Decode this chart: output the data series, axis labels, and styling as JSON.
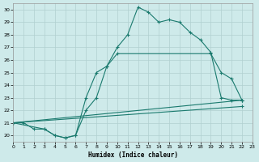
{
  "line1_x": [
    0,
    1,
    2,
    3,
    4,
    5,
    6,
    7,
    8,
    9,
    10,
    11,
    12,
    13,
    14,
    15,
    16,
    17,
    18,
    19,
    20,
    21,
    22
  ],
  "line1_y": [
    21.0,
    21.0,
    20.5,
    20.5,
    20.0,
    19.8,
    20.0,
    23.0,
    25.0,
    25.5,
    27.0,
    28.0,
    30.2,
    29.8,
    29.0,
    29.2,
    29.0,
    28.2,
    27.6,
    26.6,
    23.0,
    22.8,
    22.8
  ],
  "line2_x": [
    0,
    3,
    4,
    5,
    6,
    7,
    8,
    9,
    10,
    19,
    20,
    21,
    22
  ],
  "line2_y": [
    21.0,
    20.5,
    20.0,
    19.8,
    20.0,
    22.0,
    23.0,
    25.5,
    26.5,
    26.5,
    25.0,
    24.5,
    22.8
  ],
  "line3_x": [
    0,
    22
  ],
  "line3_y": [
    21.0,
    22.8
  ],
  "line4_x": [
    0,
    22
  ],
  "line4_y": [
    21.0,
    22.3
  ],
  "color": "#1a7a6e",
  "bg_color": "#ceeaea",
  "grid_color": "#b0d0d0",
  "xlabel": "Humidex (Indice chaleur)",
  "xlim": [
    0,
    23
  ],
  "ylim": [
    19.5,
    30.5
  ],
  "yticks": [
    20,
    21,
    22,
    23,
    24,
    25,
    26,
    27,
    28,
    29,
    30
  ],
  "xticks": [
    0,
    1,
    2,
    3,
    4,
    5,
    6,
    7,
    8,
    9,
    10,
    11,
    12,
    13,
    14,
    15,
    16,
    17,
    18,
    19,
    20,
    21,
    22,
    23
  ],
  "linewidth": 0.8,
  "markersize": 3.5
}
